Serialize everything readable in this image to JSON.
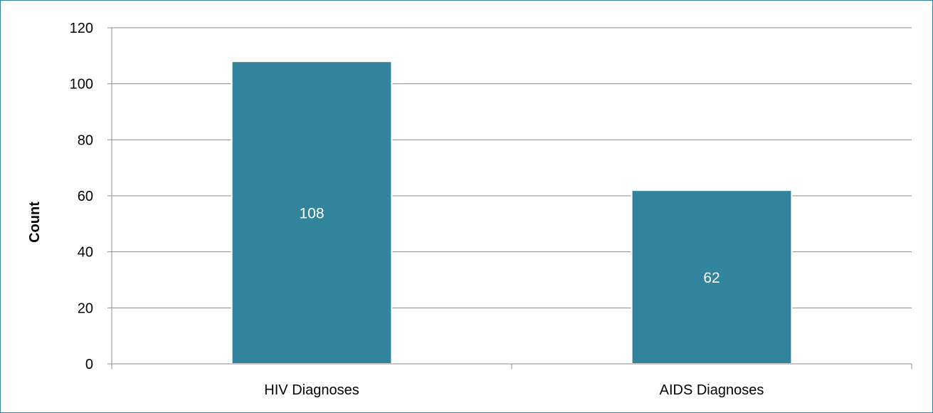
{
  "chart_data": {
    "type": "bar",
    "title": "",
    "xlabel": "",
    "ylabel": "Count",
    "categories": [
      "HIV Diagnoses",
      "AIDS Diagnoses"
    ],
    "values": [
      108,
      62
    ],
    "data_labels": [
      "108",
      "62"
    ],
    "ylim": [
      0,
      120
    ],
    "yticks": [
      0,
      20,
      40,
      60,
      80,
      100,
      120
    ],
    "grid": true,
    "legend": "none",
    "bar_color": "#31849b",
    "bar_edge_color": "#ffffff",
    "frame_color": "#31849b"
  }
}
